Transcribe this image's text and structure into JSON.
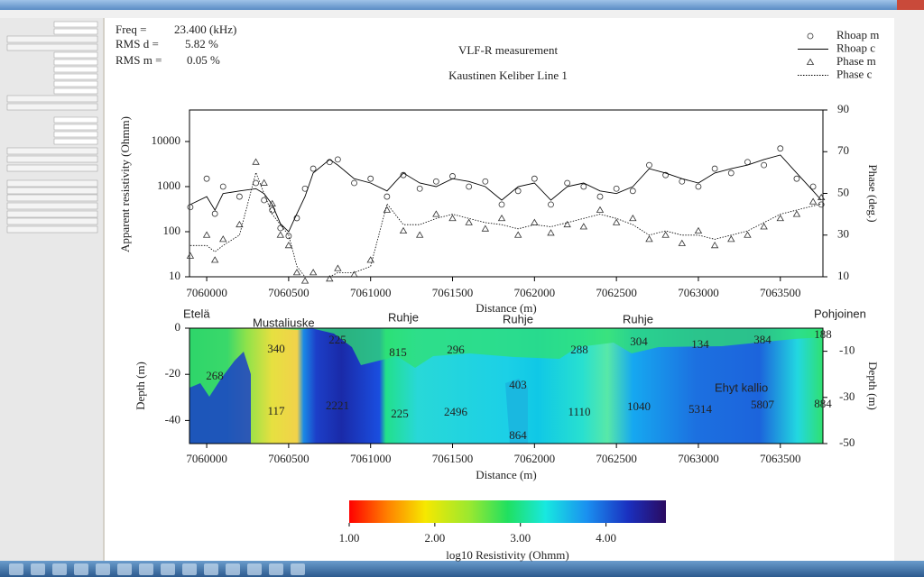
{
  "header": {
    "freq_label": "Freq =",
    "freq_value": "23.400 (kHz)",
    "rms_d_label": "RMS d =",
    "rms_d_value": "5.82 %",
    "rms_m_label": "RMS m =",
    "rms_m_value": "0.05 %"
  },
  "chart_data": [
    {
      "type": "scatter",
      "title": "VLF-R measurement",
      "subtitle": "Kaustinen Keliber Line 1",
      "x_label": "Distance (m)",
      "y_label": "Apparent resistivity (Ohmm)",
      "y2_label": "Phase (deg.)",
      "log_scale": true,
      "legend": "top-right",
      "x": [
        7059900,
        7060000,
        7060050,
        7060100,
        7060200,
        7060300,
        7060350,
        7060400,
        7060450,
        7060500,
        7060550,
        7060600,
        7060650,
        7060750,
        7060800,
        7060900,
        7061000,
        7061100,
        7061200,
        7061300,
        7061400,
        7061500,
        7061600,
        7061700,
        7061800,
        7061900,
        7062000,
        7062100,
        7062200,
        7062300,
        7062400,
        7062500,
        7062600,
        7062700,
        7062800,
        7062900,
        7063000,
        7063100,
        7063200,
        7063300,
        7063400,
        7063500,
        7063600,
        7063700,
        7063750
      ],
      "series": [
        {
          "name": "Rhoap m",
          "marker": "circle",
          "color": "#000000",
          "values": [
            350,
            1500,
            250,
            1000,
            600,
            1200,
            500,
            300,
            120,
            80,
            200,
            900,
            2500,
            3500,
            4000,
            1200,
            1500,
            600,
            1800,
            900,
            1300,
            1700,
            1000,
            1300,
            400,
            800,
            1500,
            400,
            1200,
            1000,
            600,
            900,
            800,
            3000,
            1800,
            1300,
            1000,
            2500,
            2000,
            3500,
            3000,
            7000,
            1500,
            1000,
            400
          ]
        },
        {
          "name": "Rhoap c",
          "marker": "line",
          "color": "#000000",
          "values": [
            400,
            600,
            300,
            700,
            800,
            900,
            700,
            400,
            150,
            100,
            250,
            600,
            2000,
            4000,
            3000,
            1500,
            1200,
            800,
            2000,
            1200,
            1000,
            1500,
            1300,
            1000,
            500,
            1000,
            1200,
            500,
            1000,
            1200,
            800,
            700,
            1000,
            2500,
            2000,
            1500,
            1200,
            2000,
            2500,
            3000,
            4000,
            5000,
            2000,
            800,
            500
          ]
        },
        {
          "name": "Phase m",
          "marker": "triangle",
          "axis": "y2",
          "color": "#000000",
          "values": [
            20,
            30,
            18,
            28,
            35,
            65,
            55,
            45,
            30,
            25,
            12,
            8,
            12,
            9,
            14,
            11,
            18,
            42,
            32,
            30,
            40,
            38,
            36,
            33,
            38,
            30,
            36,
            31,
            35,
            34,
            42,
            36,
            38,
            28,
            30,
            26,
            32,
            25,
            28,
            30,
            34,
            38,
            40,
            46,
            48
          ]
        },
        {
          "name": "Phase c",
          "marker": "dotted",
          "axis": "y2",
          "color": "#000000",
          "values": [
            25,
            25,
            22,
            25,
            30,
            60,
            50,
            40,
            35,
            30,
            15,
            10,
            10,
            10,
            12,
            12,
            15,
            45,
            35,
            35,
            38,
            40,
            38,
            36,
            35,
            33,
            35,
            34,
            36,
            38,
            40,
            38,
            35,
            30,
            32,
            30,
            30,
            28,
            30,
            32,
            36,
            40,
            42,
            44,
            45
          ]
        }
      ],
      "xlim": [
        7059895,
        7063760
      ],
      "xticks": [
        7060000,
        7060500,
        7061000,
        7061500,
        7062000,
        7062500,
        7063000,
        7063500
      ],
      "ylim": [
        10,
        50000
      ],
      "yticks": [
        10,
        100,
        1000,
        10000
      ],
      "y2lim": [
        10,
        90
      ],
      "y2ticks": [
        10,
        30,
        50,
        70,
        90
      ]
    },
    {
      "type": "section",
      "x_label": "Distance (m)",
      "y_label": "Depth (m)",
      "y2_label": "Depth (m)",
      "xlim": [
        7059895,
        7063760
      ],
      "xticks": [
        7060000,
        7060500,
        7061000,
        7061500,
        7062000,
        7062500,
        7063000,
        7063500
      ],
      "ylim": [
        -50,
        0
      ],
      "yticks": [
        0,
        -20,
        -40
      ],
      "y2lim": [
        -50,
        0
      ],
      "y2ticks": [
        -10,
        -30,
        -50
      ],
      "annotations": [
        "Etelä",
        "Mustaliuske",
        "Ruhje",
        "Ruhje",
        "Ruhje",
        "Pohjoinen",
        "Ehyt kallio"
      ],
      "resistivity_labels": [
        "268",
        "340",
        "225",
        "815",
        "296",
        "288",
        "304",
        "134",
        "384",
        "188",
        "117",
        "2221",
        "225",
        "2496",
        "403",
        "864",
        "1110",
        "1040",
        "5314",
        "5807",
        "884"
      ]
    },
    {
      "type": "colorbar",
      "label": "log10 Resistivity (Ohmm)",
      "xlim": [
        1,
        4.7
      ],
      "xticks": [
        {
          "value": 1,
          "label": "1.00"
        },
        {
          "value": 2,
          "label": "2.00"
        },
        {
          "value": 3,
          "label": "3.00"
        },
        {
          "value": 4,
          "label": "4.00"
        }
      ]
    }
  ]
}
